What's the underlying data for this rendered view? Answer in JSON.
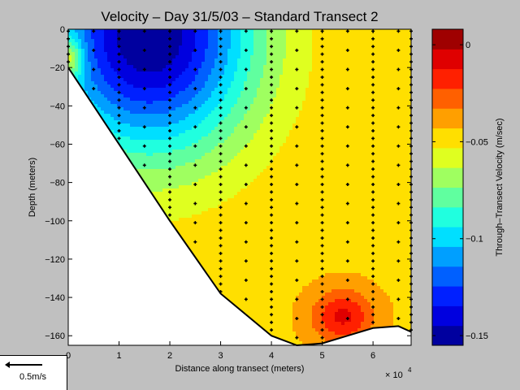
{
  "chart_data": {
    "type": "contour",
    "title": "Velocity – Day 31/5/03 – Standard Transect 2",
    "xlabel": "Distance along transect (meters)",
    "ylabel": "Depth (meters)",
    "x_multiplier": "× 10",
    "x_multiplier_exp": "4",
    "xlim": [
      0,
      67500
    ],
    "ylim": [
      -165,
      0
    ],
    "xticks": [
      {
        "value": 0,
        "label": "0"
      },
      {
        "value": 10000,
        "label": "1"
      },
      {
        "value": 20000,
        "label": "2"
      },
      {
        "value": 30000,
        "label": "3"
      },
      {
        "value": 40000,
        "label": "4"
      },
      {
        "value": 50000,
        "label": "5"
      },
      {
        "value": 60000,
        "label": "6"
      }
    ],
    "yticks": [
      {
        "value": 0,
        "label": "0"
      },
      {
        "value": -20,
        "label": "−20"
      },
      {
        "value": -40,
        "label": "−40"
      },
      {
        "value": -60,
        "label": "−60"
      },
      {
        "value": -80,
        "label": "−80"
      },
      {
        "value": -100,
        "label": "−100"
      },
      {
        "value": -120,
        "label": "−120"
      },
      {
        "value": -140,
        "label": "−140"
      },
      {
        "value": -160,
        "label": "−160"
      }
    ],
    "colorbar": {
      "label": "Through–Transect Velocity (m/sec)",
      "range": [
        -0.155,
        0.008
      ],
      "ticks": [
        {
          "value": 0,
          "label": "0"
        },
        {
          "value": -0.05,
          "label": "−0.05"
        },
        {
          "value": -0.1,
          "label": "−0.1"
        },
        {
          "value": -0.15,
          "label": "−0.15"
        }
      ],
      "levels": 16
    },
    "bottom_profile": [
      [
        0,
        -20
      ],
      [
        10000,
        -60
      ],
      [
        20000,
        -100
      ],
      [
        30000,
        -138
      ],
      [
        40000,
        -160
      ],
      [
        45000,
        -165
      ],
      [
        50000,
        -164
      ],
      [
        55000,
        -160
      ],
      [
        60000,
        -156
      ],
      [
        65000,
        -155
      ],
      [
        67500,
        -158
      ]
    ],
    "velocity_core": {
      "x": 16000,
      "depth": -4,
      "value": -0.155
    },
    "stations_x": [
      0,
      5000,
      10000,
      15000,
      20000,
      25000,
      30000,
      35000,
      40000,
      45000,
      50000,
      55000,
      60000,
      65000,
      67500
    ],
    "sample_spacing_depth": 4,
    "grid": false
  },
  "scale_arrow": {
    "label": "0.5m/s"
  },
  "colors": {
    "background": "#c0c0c0"
  }
}
